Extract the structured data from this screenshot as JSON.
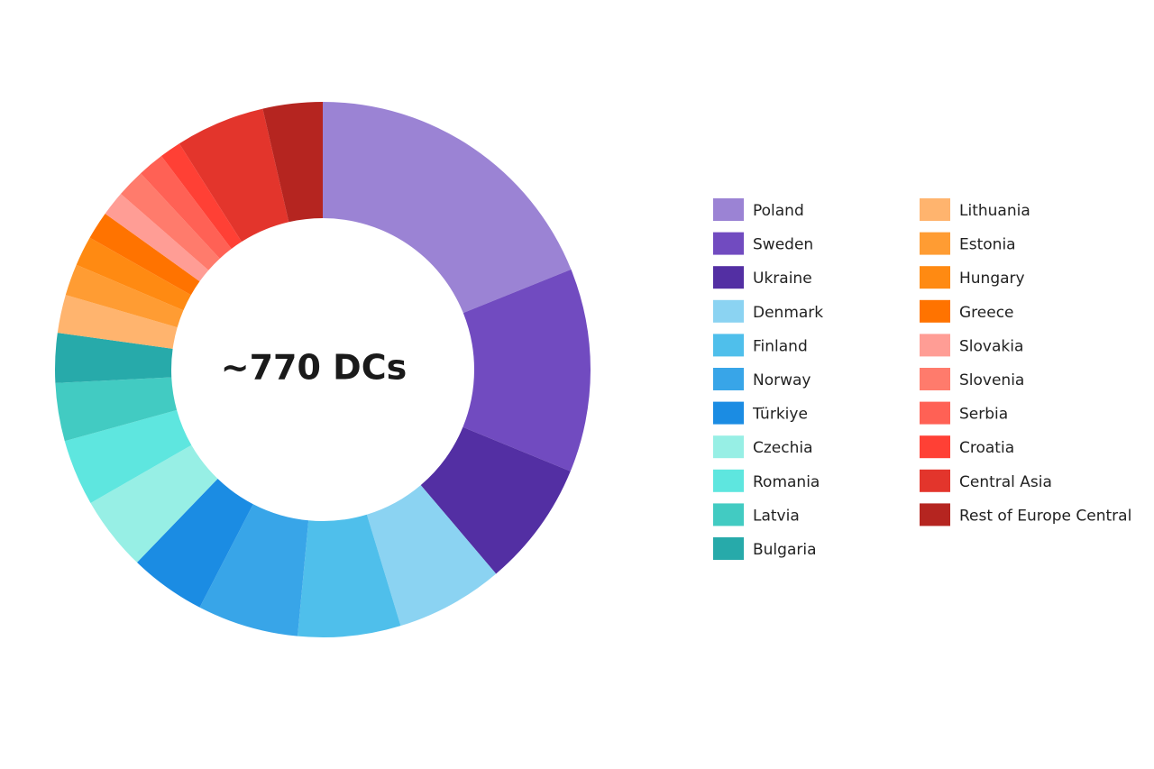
{
  "chart_data": {
    "type": "donut",
    "center_label": "~770 DCs",
    "categories": [
      "Poland",
      "Sweden",
      "Ukraine",
      "Denmark",
      "Finland",
      "Norway",
      "Türkiye",
      "Czechia",
      "Romania",
      "Latvia",
      "Bulgaria",
      "Lithuania",
      "Estonia",
      "Hungary",
      "Greece",
      "Slovakia",
      "Slovenia",
      "Serbia",
      "Croatia",
      "Central Asia",
      "Rest of Europe Central"
    ],
    "values": [
      18.9,
      12.3,
      7.6,
      6.5,
      6.2,
      6.1,
      4.6,
      4.5,
      4.0,
      3.5,
      3.0,
      2.3,
      1.9,
      1.8,
      1.7,
      1.5,
      1.7,
      1.6,
      1.3,
      5.4,
      3.6
    ],
    "colors": [
      "#9b83d4",
      "#714bc0",
      "#532fa3",
      "#8bd3f2",
      "#4fbfeb",
      "#38a5e8",
      "#1b8ce3",
      "#97efe5",
      "#5ee6df",
      "#42cbc2",
      "#27aaaa",
      "#ffb46e",
      "#ff9c33",
      "#ff8a12",
      "#ff7300",
      "#ff9d95",
      "#ff7b6c",
      "#ff6155",
      "#ff4035",
      "#e3352c",
      "#b52520"
    ]
  }
}
